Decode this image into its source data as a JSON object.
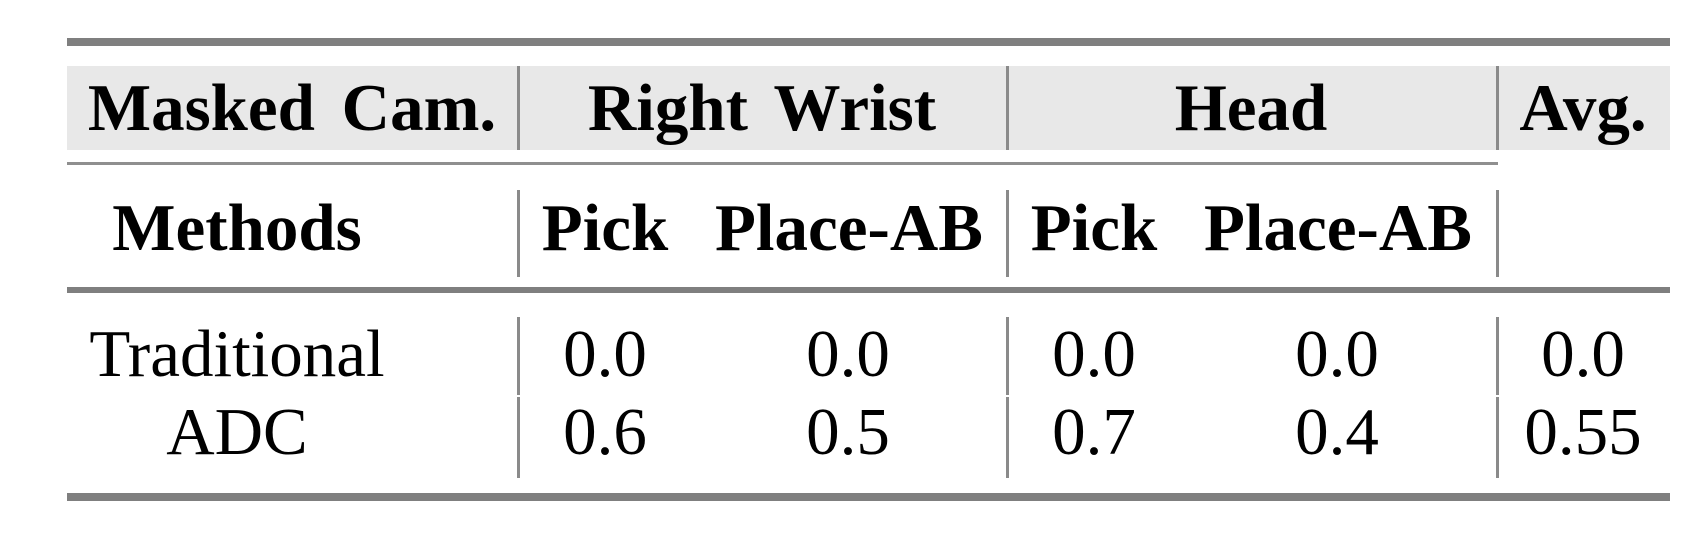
{
  "table": {
    "header_row1": {
      "masked_cam": "Masked Cam.",
      "right_wrist": "Right Wrist",
      "head": "Head",
      "avg": "Avg."
    },
    "header_row2": {
      "methods": "Methods",
      "rw_pick": "Pick",
      "rw_place": "Place-AB",
      "head_pick": "Pick",
      "head_place": "Place-AB"
    },
    "rows": [
      {
        "method": "Traditional",
        "rw_pick": "0.0",
        "rw_place": "0.0",
        "head_pick": "0.0",
        "head_place": "0.0",
        "avg": "0.0"
      },
      {
        "method": "ADC",
        "rw_pick": "0.6",
        "rw_place": "0.5",
        "head_pick": "0.7",
        "head_place": "0.4",
        "avg": "0.55"
      }
    ]
  },
  "chart_data": {
    "type": "table",
    "columns": [
      "Masked Cam. / Methods",
      "Right Wrist Pick",
      "Right Wrist Place-AB",
      "Head Pick",
      "Head Place-AB",
      "Avg."
    ],
    "rows": [
      [
        "Traditional",
        0.0,
        0.0,
        0.0,
        0.0,
        0.0
      ],
      [
        "ADC",
        0.6,
        0.5,
        0.7,
        0.4,
        0.55
      ]
    ]
  },
  "colors": {
    "header_bg": "#e8e8e8",
    "rule_thick": "#7f7f7f",
    "rule_thin": "#8f8f8f",
    "vertical_rule": "#8a8a8a",
    "text": "#000000",
    "background": "#ffffff"
  }
}
